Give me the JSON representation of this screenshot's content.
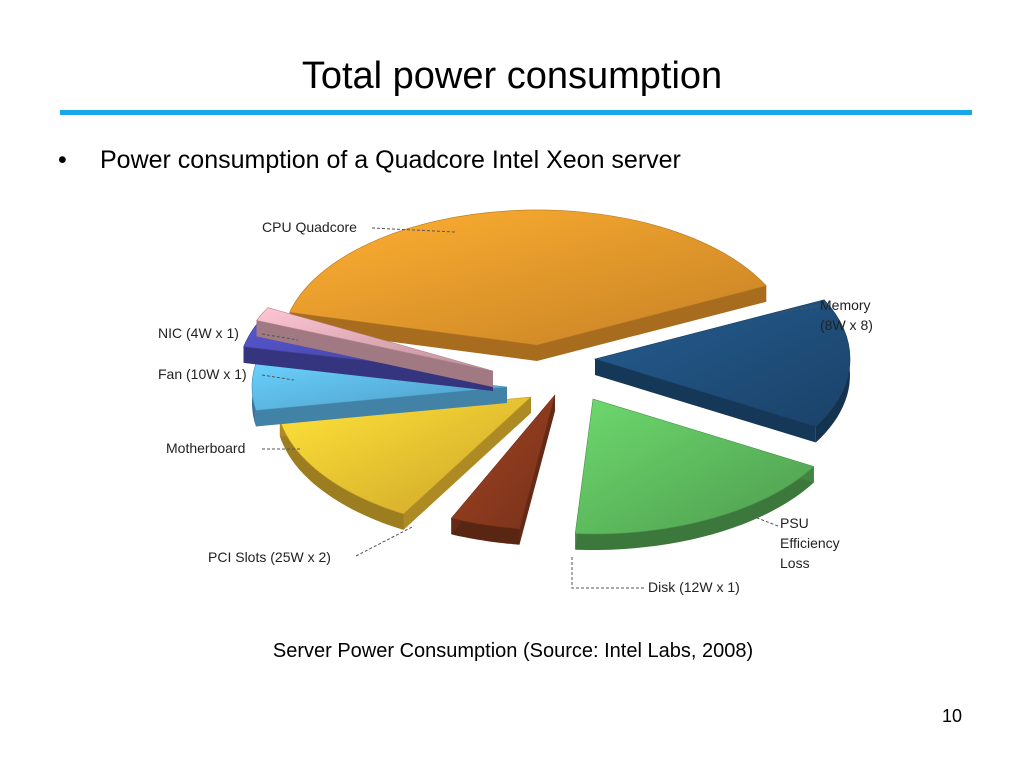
{
  "slide": {
    "title": "Total power consumption",
    "bullet": "Power consumption of a Quadcore Intel Xeon server",
    "caption": "Server Power Consumption (Source: Intel Labs, 2008)",
    "page_number": "10"
  },
  "colors": {
    "rule": "#1aa7e8"
  },
  "chart_data": {
    "type": "pie",
    "style": "exploded 3D pie",
    "slices": [
      {
        "label": "CPU Quadcore",
        "color": "#e8962a",
        "leader_side": "top"
      },
      {
        "label": "Memory",
        "sublabel": "(8W x 8)",
        "value": 64,
        "color": "#1f4e7a",
        "leader_side": "right"
      },
      {
        "label": "PSU",
        "sublabel": "Efficiency",
        "sublabel2": "Loss",
        "color": "#5cb85c",
        "leader_side": "right"
      },
      {
        "label": "Disk (12W x 1)",
        "value": 12,
        "color": "#8b3a1e",
        "leader_side": "bottom"
      },
      {
        "label": "PCI Slots (25W x 2)",
        "value": 50,
        "color": "#f0c030",
        "leader_side": "left"
      },
      {
        "label": "Motherboard",
        "color": "#5ab4e6",
        "leader_side": "left"
      },
      {
        "label": "Fan (10W x 1)",
        "value": 10,
        "color": "#4a4ab0",
        "leader_side": "left"
      },
      {
        "label": "NIC (4W x 1)",
        "value": 4,
        "color": "#e0a8b4",
        "leader_side": "left"
      }
    ]
  }
}
